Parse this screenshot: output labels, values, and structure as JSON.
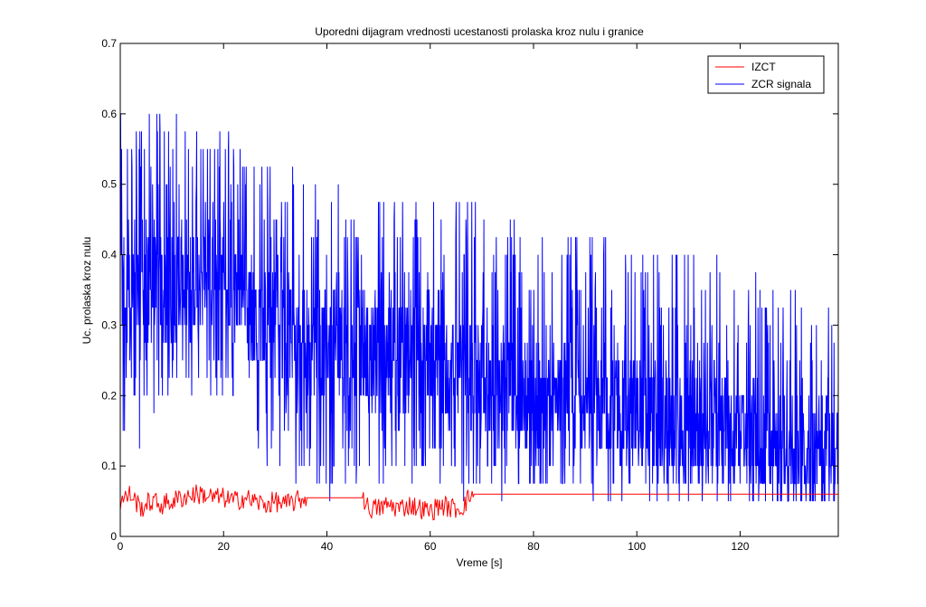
{
  "chart_data": {
    "type": "line",
    "title": "Uporedni dijagram vrednosti ucestanosti prolaska kroz nulu i granice",
    "xlabel": "Vreme [s]",
    "ylabel": "Uc. prolaska kroz nulu",
    "xlim": [
      0,
      139
    ],
    "ylim": [
      0,
      0.7
    ],
    "xticks": [
      0,
      20,
      40,
      60,
      80,
      100,
      120
    ],
    "yticks": [
      0,
      0.1,
      0.2,
      0.3,
      0.4,
      0.5,
      0.6,
      0.7
    ],
    "xtick_labels": [
      "0",
      "20",
      "40",
      "60",
      "80",
      "100",
      "120"
    ],
    "ytick_labels": [
      "0",
      "0.1",
      "0.2",
      "0.3",
      "0.4",
      "0.5",
      "0.6",
      "0.7"
    ],
    "grid": false,
    "legend_position": "top-right",
    "series": [
      {
        "name": "IZCT",
        "color": "#ff0000",
        "description_note": "",
        "x": [
          0,
          2,
          4,
          6,
          8,
          10,
          12,
          14,
          16,
          18,
          20,
          22,
          24,
          26,
          28,
          30,
          32,
          34,
          36,
          38,
          40,
          42,
          44,
          46,
          47,
          48,
          50,
          52,
          54,
          56,
          58,
          60,
          62,
          64,
          66,
          67,
          68,
          80,
          100,
          120,
          139
        ],
        "values": [
          0.05,
          0.06,
          0.04,
          0.05,
          0.045,
          0.05,
          0.055,
          0.06,
          0.06,
          0.055,
          0.055,
          0.05,
          0.055,
          0.05,
          0.045,
          0.05,
          0.045,
          0.05,
          0.055,
          0.055,
          0.055,
          0.055,
          0.055,
          0.055,
          0.055,
          0.04,
          0.04,
          0.045,
          0.04,
          0.045,
          0.04,
          0.035,
          0.045,
          0.04,
          0.04,
          0.05,
          0.06,
          0.06,
          0.06,
          0.06,
          0.06
        ]
      },
      {
        "name": "ZCR signala",
        "color": "#0000ff",
        "x": [
          0,
          5,
          10,
          15,
          20,
          25,
          30,
          35,
          40,
          45,
          50,
          55,
          60,
          65,
          70,
          75,
          80,
          85,
          90,
          95,
          100,
          105,
          110,
          115,
          120,
          125,
          130,
          135,
          139
        ],
        "center": [
          0.33,
          0.34,
          0.36,
          0.37,
          0.37,
          0.33,
          0.29,
          0.28,
          0.28,
          0.27,
          0.26,
          0.26,
          0.25,
          0.24,
          0.22,
          0.21,
          0.2,
          0.19,
          0.19,
          0.18,
          0.17,
          0.16,
          0.16,
          0.15,
          0.14,
          0.13,
          0.12,
          0.12,
          0.12
        ],
        "upper": [
          0.6,
          0.6,
          0.6,
          0.58,
          0.6,
          0.55,
          0.53,
          0.52,
          0.51,
          0.5,
          0.5,
          0.48,
          0.48,
          0.47,
          0.47,
          0.45,
          0.45,
          0.44,
          0.44,
          0.43,
          0.42,
          0.4,
          0.4,
          0.4,
          0.38,
          0.37,
          0.36,
          0.35,
          0.35
        ],
        "lower": [
          0.12,
          0.14,
          0.18,
          0.2,
          0.18,
          0.12,
          0.08,
          0.06,
          0.05,
          0.06,
          0.08,
          0.07,
          0.07,
          0.06,
          0.06,
          0.06,
          0.06,
          0.06,
          0.05,
          0.05,
          0.05,
          0.05,
          0.05,
          0.05,
          0.05,
          0.05,
          0.05,
          0.05,
          0.05
        ]
      }
    ]
  }
}
